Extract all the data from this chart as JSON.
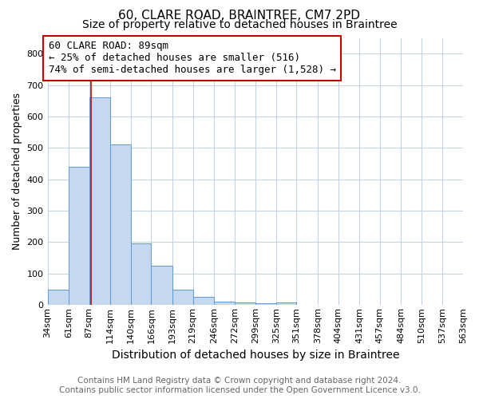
{
  "title": "60, CLARE ROAD, BRAINTREE, CM7 2PD",
  "subtitle": "Size of property relative to detached houses in Braintree",
  "xlabel": "Distribution of detached houses by size in Braintree",
  "ylabel": "Number of detached properties",
  "bin_labels": [
    "34sqm",
    "61sqm",
    "87sqm",
    "114sqm",
    "140sqm",
    "166sqm",
    "193sqm",
    "219sqm",
    "246sqm",
    "272sqm",
    "299sqm",
    "325sqm",
    "351sqm",
    "378sqm",
    "404sqm",
    "431sqm",
    "457sqm",
    "484sqm",
    "510sqm",
    "537sqm",
    "563sqm"
  ],
  "bin_edges": [
    34,
    61,
    87,
    114,
    140,
    166,
    193,
    219,
    246,
    272,
    299,
    325,
    351,
    378,
    404,
    431,
    457,
    484,
    510,
    537,
    563
  ],
  "bar_heights": [
    50,
    440,
    660,
    510,
    195,
    125,
    50,
    25,
    10,
    8,
    5,
    8,
    0,
    0,
    0,
    0,
    0,
    0,
    0,
    0
  ],
  "bar_color": "#c5d8f0",
  "bar_edge_color": "#5b9bd5",
  "property_line_x": 89,
  "property_line_color": "#cc0000",
  "annotation_text": "60 CLARE ROAD: 89sqm\n← 25% of detached houses are smaller (516)\n74% of semi-detached houses are larger (1,528) →",
  "annotation_box_color": "#ffffff",
  "annotation_box_edge_color": "#cc0000",
  "ylim": [
    0,
    850
  ],
  "yticks": [
    0,
    100,
    200,
    300,
    400,
    500,
    600,
    700,
    800
  ],
  "footer_line1": "Contains HM Land Registry data © Crown copyright and database right 2024.",
  "footer_line2": "Contains public sector information licensed under the Open Government Licence v3.0.",
  "background_color": "#ffffff",
  "grid_color": "#c0d0e8",
  "title_fontsize": 11,
  "subtitle_fontsize": 10,
  "xlabel_fontsize": 10,
  "ylabel_fontsize": 9,
  "tick_fontsize": 8,
  "footer_fontsize": 7.5,
  "annotation_fontsize": 9
}
